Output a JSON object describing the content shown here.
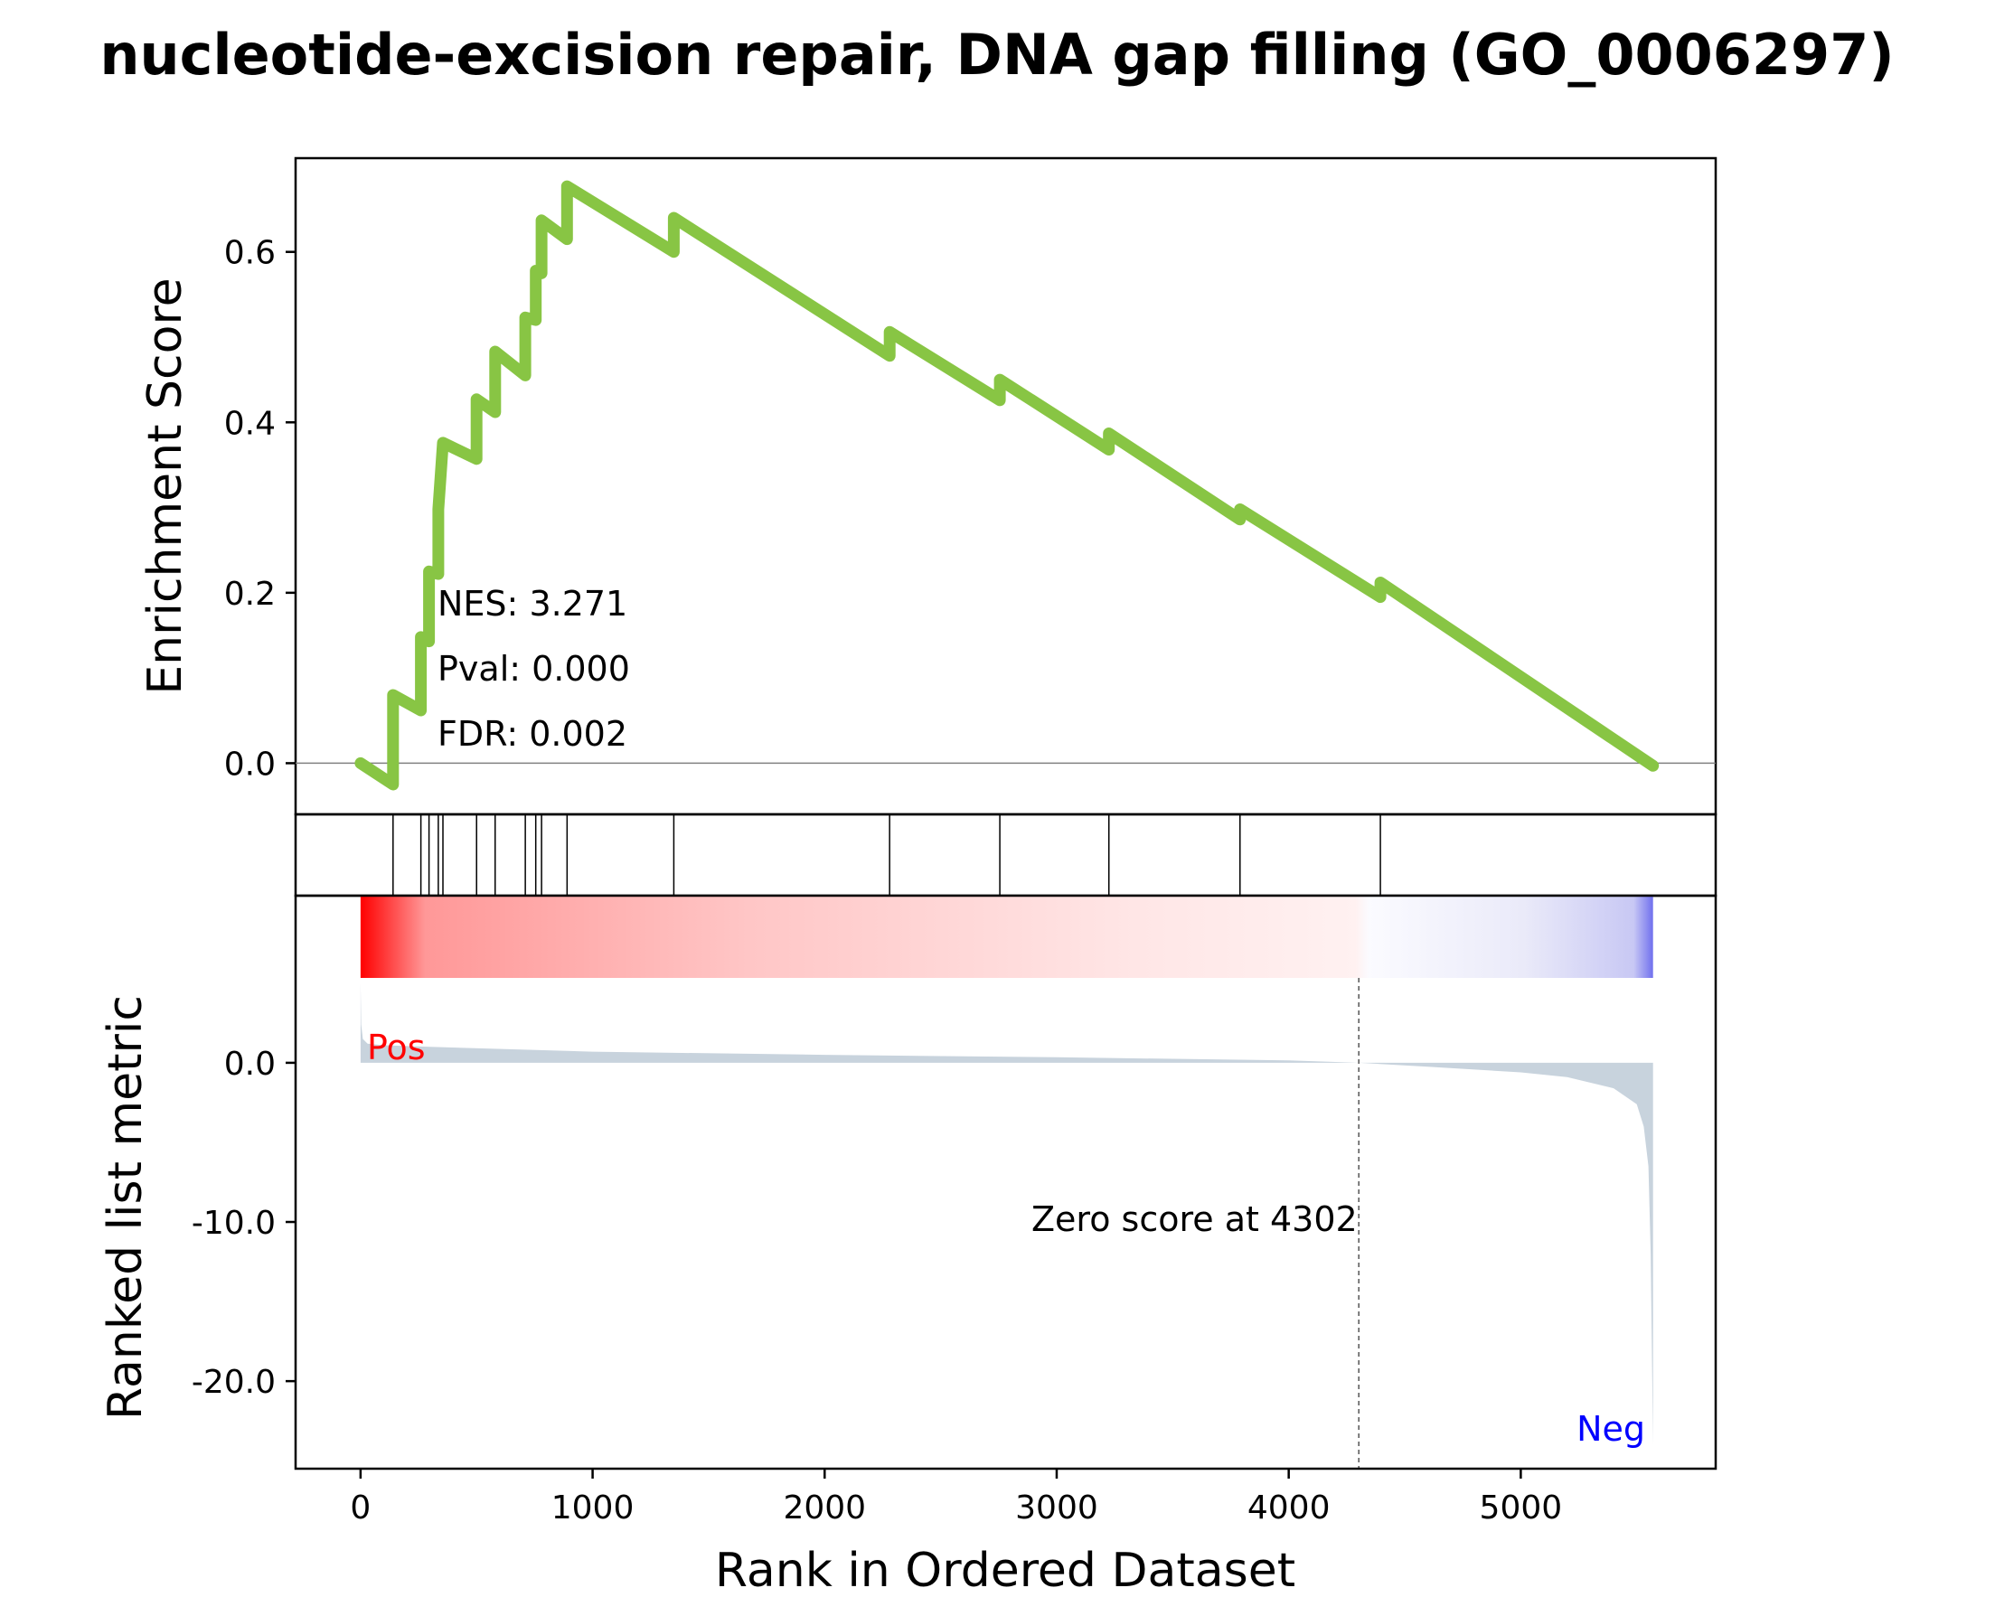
{
  "chart_data": {
    "type": "line",
    "title": "nucleotide-excision repair, DNA gap filling (GO_0006297)",
    "top_panel": {
      "ylabel": "Enrichment Score",
      "ylim": [
        -0.06,
        0.71
      ],
      "yticks": [
        0.0,
        0.2,
        0.4,
        0.6
      ],
      "ytick_labels": [
        "0.0",
        "0.2",
        "0.4",
        "0.6"
      ],
      "line_color": "#88c544",
      "series": [
        {
          "x": [
            0,
            140,
            140,
            260,
            260,
            295,
            295,
            335,
            335,
            355,
            355,
            500,
            500,
            580,
            580,
            710,
            710,
            755,
            755,
            780,
            780,
            890,
            890,
            1350,
            1350,
            2280,
            2280,
            2755,
            2755,
            3225,
            3225,
            3790,
            3790,
            4395,
            4395,
            5570
          ],
          "y": [
            0.0,
            -0.025,
            0.08,
            0.062,
            0.148,
            0.143,
            0.225,
            0.222,
            0.298,
            0.376,
            0.376,
            0.357,
            0.427,
            0.412,
            0.483,
            0.455,
            0.523,
            0.52,
            0.578,
            0.575,
            0.637,
            0.615,
            0.677,
            0.6,
            0.64,
            0.478,
            0.506,
            0.426,
            0.45,
            0.368,
            0.387,
            0.286,
            0.298,
            0.195,
            0.212,
            -0.003
          ]
        }
      ],
      "annotations": [
        "NES: 3.271",
        "Pval: 0.000",
        "FDR: 0.002"
      ]
    },
    "hits_panel": {
      "positions": [
        140,
        260,
        295,
        335,
        355,
        500,
        580,
        710,
        755,
        780,
        890,
        1350,
        2280,
        2755,
        3225,
        3790,
        4395
      ]
    },
    "bottom_panel": {
      "ylabel": "Ranked list metric",
      "ylim": [
        -25.5,
        10.5
      ],
      "yticks": [
        0.0,
        -10.0,
        -20.0
      ],
      "ytick_labels": [
        "0.0",
        "-10.0",
        "-20.0"
      ],
      "fill_color": "#c8d3dd",
      "metric": {
        "x": [
          0,
          3,
          10,
          30,
          100,
          300,
          1000,
          2000,
          3000,
          4000,
          4302,
          4600,
          5000,
          5200,
          5400,
          5500,
          5530,
          5550,
          5560,
          5565,
          5570
        ],
        "y": [
          5.0,
          2.4,
          1.5,
          1.2,
          1.1,
          1.0,
          0.7,
          0.5,
          0.35,
          0.15,
          0.0,
          -0.25,
          -0.6,
          -0.9,
          -1.6,
          -2.6,
          -4.0,
          -6.5,
          -12.0,
          -18.0,
          -24.0
        ]
      },
      "zero_crossing": 4302,
      "zero_label": "Zero score at 4302",
      "pos_label": "Pos",
      "neg_label": "Neg",
      "pos_color": "#ff0000",
      "neg_color": "#0000ff"
    },
    "xlabel": "Rank in Ordered Dataset",
    "xlim": [
      -280,
      5840
    ],
    "xticks": [
      0,
      1000,
      2000,
      3000,
      4000,
      5000
    ],
    "xtick_labels": [
      "0",
      "1000",
      "2000",
      "3000",
      "4000",
      "5000"
    ],
    "n_genes": 5570
  }
}
